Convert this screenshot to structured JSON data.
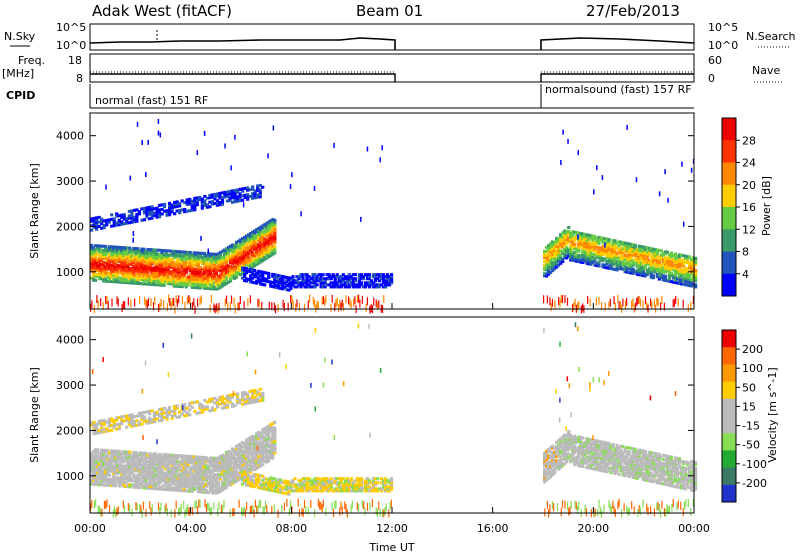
{
  "header": {
    "station": "Adak West (fitACF)",
    "beam": "Beam 01",
    "date": "27/Feb/2013"
  },
  "top_panels": {
    "nsky_label": "N.Sky",
    "nsky_ticks": [
      "10^5",
      "10^0"
    ],
    "nsearch_label": "N.Search",
    "freq_label_1": "Freq.",
    "freq_label_2": "[MHz]",
    "freq_ticks": [
      "18",
      "8"
    ],
    "nave_label": "Nave",
    "nave_ticks": [
      "60",
      "0"
    ],
    "cpid_label": "CPID",
    "cpid_segments": [
      "normal (fast) 151 RF",
      "normalsound (fast) 157 RF"
    ]
  },
  "colors": {
    "power_scale": [
      "#0000ff",
      "#2255bb",
      "#3a9a6a",
      "#66cc44",
      "#ffcc00",
      "#ff8800",
      "#ff3300",
      "#ee0000"
    ],
    "velocity_scale": [
      "#2233cc",
      "#3a7a66",
      "#22aa33",
      "#88dd55",
      "#bbbbbb",
      "#bbbbbb",
      "#ffcc00",
      "#ff9900",
      "#ff6600",
      "#ee0000"
    ]
  },
  "chart_data": [
    {
      "type": "heatmap",
      "name": "power-panel",
      "ylabel": "Slant Range [km]",
      "xlabel": "Time UT",
      "x_range_hours": [
        0,
        24
      ],
      "y_range_km": [
        180,
        4500
      ],
      "x_ticks": [
        "00:00",
        "04:00",
        "08:00",
        "12:00",
        "16:00",
        "20:00",
        "00:00"
      ],
      "y_ticks": [
        1000,
        2000,
        3000,
        4000
      ],
      "colorbar": {
        "label": "Power [dB]",
        "ticks": [
          "28",
          "24",
          "20",
          "16",
          "12",
          "8",
          "4"
        ]
      },
      "data_gap_hours": [
        12.0,
        18.0
      ],
      "bands": [
        {
          "t_start": 0.0,
          "t_end": 7.3,
          "range_km": [
            850,
            1800
          ],
          "peak_db": 28,
          "desc_range_km": "1200 at 00:00 to 1000 at 05:00 then rising to 1800"
        },
        {
          "t_start": 0.0,
          "t_end": 6.8,
          "range_km": [
            1800,
            2800
          ],
          "peak_db": 8
        },
        {
          "t_start": 6.0,
          "t_end": 12.0,
          "range_km": [
            600,
            1000
          ],
          "peak_db": 6
        },
        {
          "t_start": 18.0,
          "t_end": 24.0,
          "range_km": [
            900,
            2000
          ],
          "peak_db": 22
        }
      ]
    },
    {
      "type": "heatmap",
      "name": "velocity-panel",
      "ylabel": "Slant Range [km]",
      "xlabel": "Time UT",
      "x_range_hours": [
        0,
        24
      ],
      "y_range_km": [
        180,
        4500
      ],
      "x_ticks": [
        "00:00",
        "04:00",
        "08:00",
        "12:00",
        "16:00",
        "20:00",
        "00:00"
      ],
      "y_ticks": [
        1000,
        2000,
        3000,
        4000
      ],
      "colorbar": {
        "label": "Velocity [m s^-1]",
        "ticks": [
          "200",
          "100",
          "50",
          "15",
          "-15",
          "-50",
          "-100",
          "-200"
        ]
      },
      "data_gap_hours": [
        12.0,
        18.0
      ]
    }
  ],
  "xaxis_title": "Time UT"
}
